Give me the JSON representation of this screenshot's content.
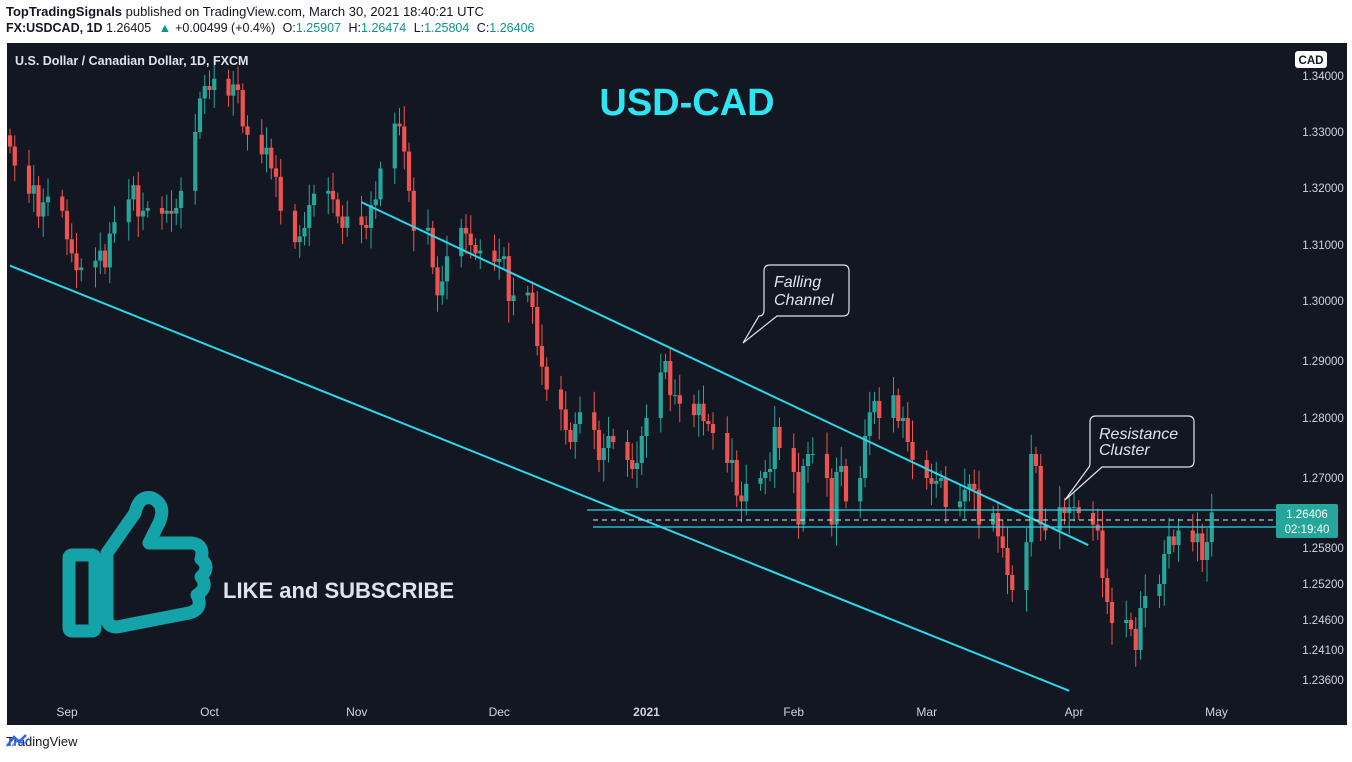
{
  "header": {
    "publisher": "TopTradingSignals",
    "published_text": "published on TradingView.com, March 30, 2021 18:40:21 UTC",
    "symbol": "FX:USDCAD, 1D",
    "last": "1.26405",
    "change": "+0.00499 (+0.4%)",
    "open_label": "O:",
    "open": "1.25907",
    "high_label": "H:",
    "high": "1.26474",
    "low_label": "L:",
    "low": "1.25804",
    "close_label": "C:",
    "close": "1.26406"
  },
  "chart_data": {
    "type": "candlestick",
    "title": "U.S. Dollar / Canadian Dollar, 1D, FXCM",
    "headline": "USD-CAD",
    "currency_badge": "CAD",
    "ylim": [
      1.233,
      1.344
    ],
    "y_ticks": [
      "1.34000",
      "1.33000",
      "1.32000",
      "1.31000",
      "1.30000",
      "1.29000",
      "1.28000",
      "1.27000",
      "1.25800",
      "1.25200",
      "1.24600",
      "1.24100",
      "1.23600"
    ],
    "x_ticks": [
      "Sep",
      "Oct",
      "Nov",
      "Dec",
      "2021",
      "Feb",
      "Mar",
      "Apr",
      "May"
    ],
    "price_label": "1.26406",
    "countdown": "02:19:40",
    "annotations": [
      "Falling Channel",
      "Resistance Cluster",
      "LIKE and SUBSCRIBE"
    ],
    "colors": {
      "up": "#26a69a",
      "down": "#ef5350",
      "line": "#28d8ec",
      "background": "#131722",
      "headline": "#2ee6f2"
    },
    "channel": {
      "upper": [
        [
          "2020-11-02",
          1.3175
        ],
        [
          "2021-04-04",
          1.2585
        ]
      ],
      "lower": [
        [
          "2020-08-20",
          1.3063
        ],
        [
          "2021-03-31",
          1.2342
        ]
      ]
    },
    "resistance_lines": [
      1.2642,
      1.2612
    ],
    "closes": [
      1.3274,
      1.324,
      1.319,
      1.3205,
      1.315,
      1.3175,
      1.3185,
      1.316,
      1.311,
      1.3085,
      1.3055,
      1.306,
      1.3072,
      1.309,
      1.306,
      1.312,
      1.314,
      1.318,
      1.3205,
      1.315,
      1.316,
      1.3165,
      1.3155,
      1.316,
      1.3155,
      1.3165,
      1.3195,
      1.33,
      1.336,
      1.3382,
      1.3375,
      1.3395,
      1.3365,
      1.3385,
      1.3375,
      1.331,
      1.3295,
      1.326,
      1.3272,
      1.3235,
      1.322,
      1.316,
      1.3105,
      1.3115,
      1.313,
      1.317,
      1.319,
      1.3195,
      1.318,
      1.315,
      1.313,
      1.315,
      1.3135,
      1.313,
      1.317,
      1.318,
      1.3235,
      1.3315,
      1.331,
      1.3265,
      1.3195,
      1.3125,
      1.313,
      1.306,
      1.301,
      1.3035,
      1.308,
      1.313,
      1.312,
      1.31,
      1.3085,
      1.309,
      1.307,
      1.3075,
      1.308,
      1.3,
      1.301,
      1.3015,
      1.299,
      1.2925,
      1.289,
      1.285,
      1.2815,
      1.278,
      1.276,
      1.279,
      1.281,
      1.278,
      1.273,
      1.275,
      1.277,
      1.276,
      1.273,
      1.2715,
      1.2725,
      1.277,
      1.28,
      1.288,
      1.29,
      1.284,
      1.284,
      1.2825,
      1.2805,
      1.2825,
      1.2795,
      1.279,
      1.2775,
      1.2725,
      1.273,
      1.267,
      1.266,
      1.269,
      1.27,
      1.271,
      1.2715,
      1.2785,
      1.275,
      1.271,
      1.262,
      1.272,
      1.274,
      1.274,
      1.27,
      1.262,
      1.271,
      1.272,
      1.266,
      1.27,
      1.277,
      1.281,
      1.283,
      1.28,
      1.284,
      1.2795,
      1.28,
      1.276,
      1.273,
      1.27,
      1.269,
      1.2695,
      1.27,
      1.265,
      1.266,
      1.268,
      1.269,
      1.268,
      1.262,
      1.264,
      1.26,
      1.258,
      1.2535,
      1.251,
      1.259,
      1.274,
      1.272,
      1.262,
      1.261,
      1.265,
      1.264,
      1.265,
      1.265,
      1.264,
      1.262,
      1.261,
      1.253,
      1.249,
      1.2455,
      1.246,
      1.2445,
      1.241,
      1.248,
      1.25,
      1.252,
      1.257,
      1.26,
      1.2585,
      1.261,
      1.259,
      1.2605,
      1.256,
      1.259,
      1.2641
    ]
  },
  "footer": {
    "brand": "TradingView"
  }
}
